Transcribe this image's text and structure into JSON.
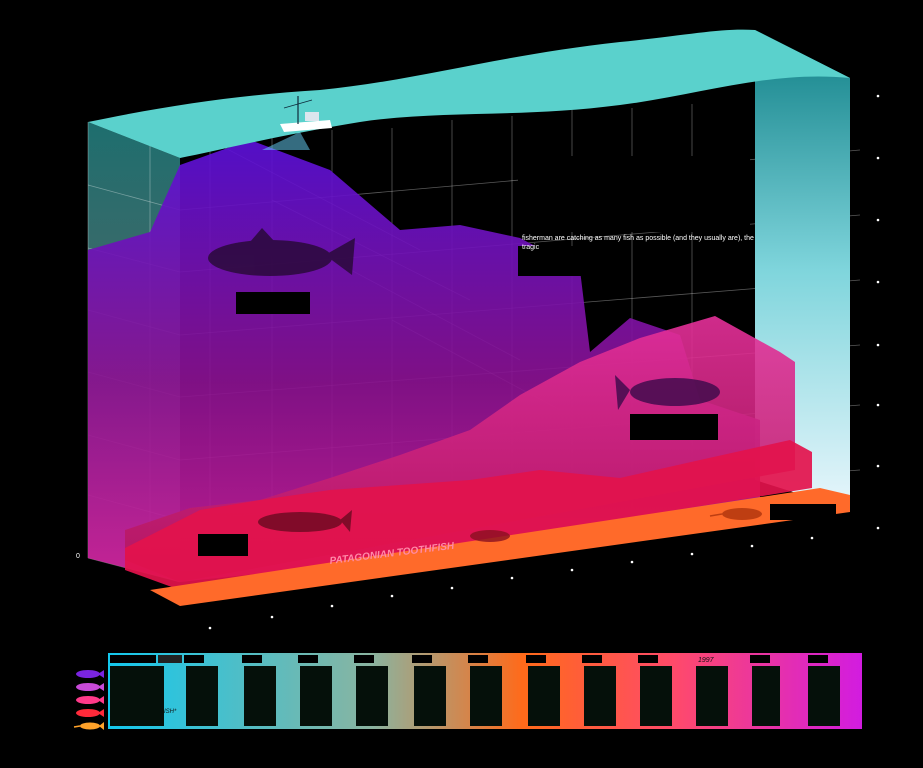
{
  "chart_data": {
    "type": "area",
    "title": "",
    "xlabel": "",
    "ylabel": "",
    "y_tick_labels": [
      "0"
    ],
    "annotation": "fisherman are catching as many fish as possible (and they usually are), the tragic",
    "series": [
      {
        "name": "",
        "color": "#6a16c8",
        "values": [
          70,
          72,
          86,
          78,
          70,
          64,
          58,
          54,
          50,
          40,
          20,
          18,
          12,
          10
        ]
      },
      {
        "name": "",
        "color": "#c81aa0",
        "values": [
          4,
          6,
          8,
          10,
          14,
          18,
          24,
          26,
          30,
          34,
          38,
          44,
          46,
          40
        ]
      },
      {
        "name": "PATAGONIAN TOOTHFISH",
        "color": "#e0104a",
        "values": [
          2,
          3,
          5,
          6,
          8,
          9,
          10,
          11,
          10,
          11,
          12,
          13,
          12,
          13
        ]
      },
      {
        "name": "",
        "color": "#ff6a2a",
        "values": [
          1,
          1,
          1,
          1,
          1,
          1,
          1,
          1,
          1,
          1,
          1,
          1,
          1,
          1
        ]
      }
    ]
  },
  "labels": {
    "toothfish": "PATAGONIAN TOOTHFISH",
    "zero": "0",
    "timeline_year": "1997",
    "timeline_note": "ISH*"
  },
  "colors": {
    "water_surface": "#5ad1cc",
    "cod": "#6a16c8",
    "tuna": "#c81aa0",
    "toothfish": "#e0104a",
    "swordfish": "#ff6a2a"
  },
  "legend_icons": [
    "cod-icon",
    "tuna-icon",
    "toothfish-icon",
    "red-fish-icon",
    "swordfish-icon"
  ]
}
